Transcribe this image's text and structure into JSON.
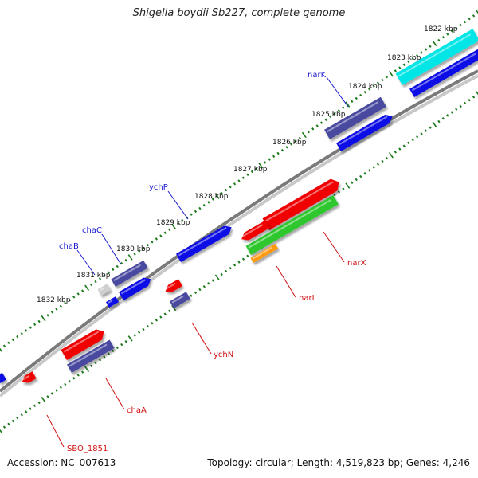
{
  "title": "Shigella boydii Sb227, complete genome",
  "accession": "Accession: NC_007613",
  "topology": "Topology: circular; Length: 4,519,823 bp; Genes: 4,246",
  "colors": {
    "red": "#f00000",
    "blue": "#0a0ae6",
    "slate": "#4a4aa0",
    "green": "#2ec82e",
    "orange": "#ff9a10",
    "cyan": "#00e6e6",
    "gray": "#cfcfcf",
    "label_blue": "#1a1ad0",
    "label_red": "#d01010",
    "tick_green": "#1a7a1a"
  },
  "kbp_labels": [
    "1822 kbp",
    "1823 kbp",
    "1824 kbp",
    "1825 kbp",
    "1826 kbp",
    "1827 kbp",
    "1828 kbp",
    "1829 kbp",
    "1830 kbp",
    "1831 kbp",
    "1832 kbp"
  ],
  "genes": [
    {
      "name": "narK",
      "color": "label_blue"
    },
    {
      "name": "ychP",
      "color": "label_blue"
    },
    {
      "name": "chaC",
      "color": "label_blue"
    },
    {
      "name": "chaB",
      "color": "label_blue"
    },
    {
      "name": "narX",
      "color": "label_red"
    },
    {
      "name": "narL",
      "color": "label_red"
    },
    {
      "name": "ychN",
      "color": "label_red"
    },
    {
      "name": "chaA",
      "color": "label_red"
    },
    {
      "name": "SBO_1851",
      "color": "label_red"
    }
  ]
}
